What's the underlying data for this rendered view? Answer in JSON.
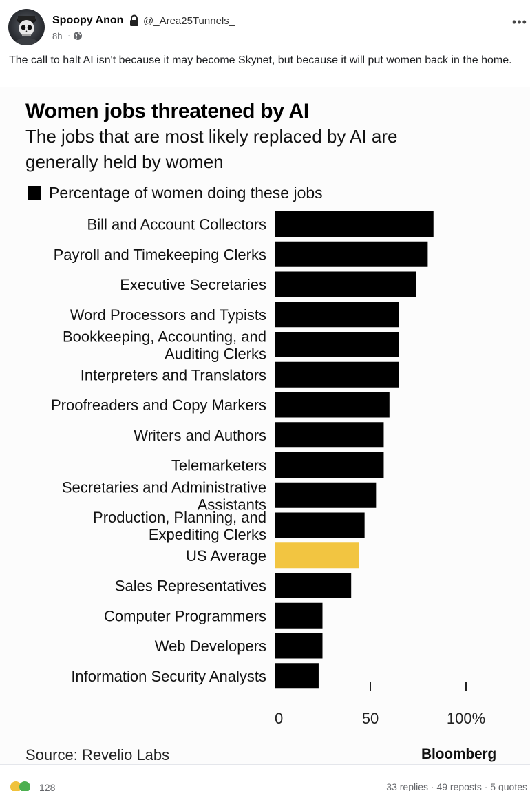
{
  "post": {
    "author_name": "Spoopy Anon",
    "author_handle": "@_Area25Tunnels_",
    "time": "8h",
    "separator": "·",
    "text": "The call to halt AI isn't because it may become Skynet, but because it will put women back in the home."
  },
  "icons": {
    "avatar": "skull-avatar",
    "lock": "lock-icon",
    "visibility": "globe-icon",
    "more": "more-options-icon",
    "more_glyph": "•••"
  },
  "image": {
    "source": "Source: Revelio Labs",
    "brand": "Bloomberg"
  },
  "chart_data": {
    "type": "bar",
    "orientation": "horizontal",
    "title": "Women jobs threatened by AI",
    "subtitle": "The jobs that are most likely replaced by AI are generally held by women",
    "legend": "Percentage of women doing these jobs",
    "categories": [
      "Bill and Account Collectors",
      "Payroll and Timekeeping Clerks",
      "Executive Secretaries",
      "Word Processors and Typists",
      "Bookkeeping, Accounting, and Auditing Clerks",
      "Interpreters and Translators",
      "Proofreaders and Copy Markers",
      "Writers and Authors",
      "Telemarketers",
      "Secretaries and Administrative Assistants",
      "Production, Planning, and Expediting Clerks",
      "US Average",
      "Sales Representatives",
      "Computer Programmers",
      "Web Developers",
      "Information Security Analysts"
    ],
    "values": [
      83,
      80,
      74,
      65,
      65,
      65,
      60,
      57,
      57,
      53,
      47,
      44,
      40,
      25,
      25,
      23
    ],
    "highlight_category": "US Average",
    "colors": {
      "bar": "#000000",
      "highlight": "#f2c541"
    },
    "xlim": [
      0,
      100
    ],
    "xticks": [
      "0",
      "50",
      "100%"
    ],
    "xtick_values": [
      0,
      50,
      100
    ]
  },
  "footer": {
    "reaction_count": "128",
    "replies": "33 replies",
    "reposts": "49 reposts",
    "quotes": "5 quotes",
    "dot": "·"
  }
}
